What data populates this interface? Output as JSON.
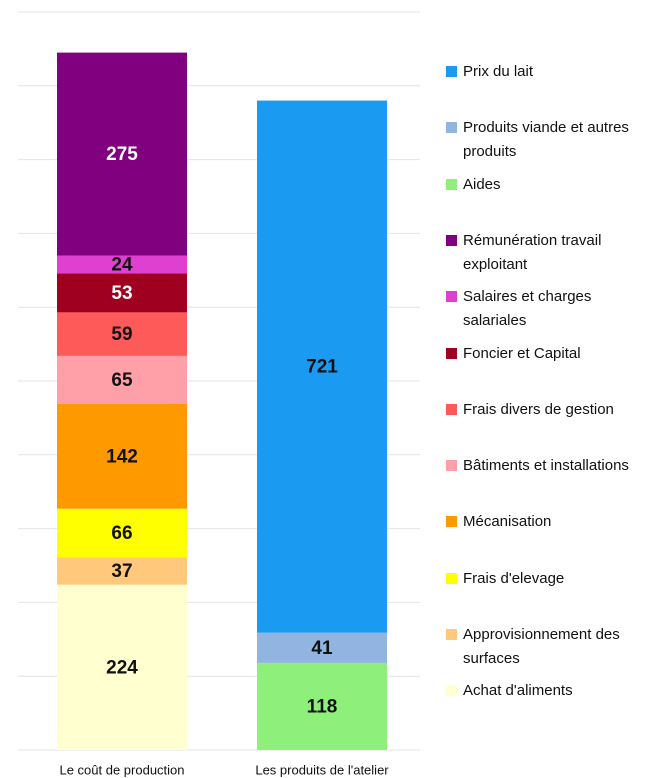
{
  "chart_data": {
    "type": "stacked_bar",
    "categories": [
      "Le coût de production",
      "Les produits de l'atelier"
    ],
    "ylim": [
      0,
      1000
    ],
    "yticks": [
      0,
      100,
      200,
      300,
      400,
      500,
      600,
      700,
      800,
      900,
      1000
    ],
    "grid": true,
    "legend": "right",
    "series": [
      {
        "name": "Prix du lait",
        "color": "#1a9af0",
        "values": [
          null,
          721
        ]
      },
      {
        "name": "Produits viande et autres produits",
        "color": "#92b4e0",
        "values": [
          null,
          41
        ]
      },
      {
        "name": "Aides",
        "color": "#8ef07a",
        "values": [
          null,
          118
        ]
      },
      {
        "name": "Rémunération travail exploitant",
        "color": "#800080",
        "values": [
          275,
          null
        ]
      },
      {
        "name": "Salaires et charges salariales",
        "color": "#e040d0",
        "values": [
          24,
          null
        ]
      },
      {
        "name": "Foncier et Capital",
        "color": "#a00020",
        "values": [
          53,
          null
        ]
      },
      {
        "name": "Frais divers de gestion",
        "color": "#ff5a5a",
        "values": [
          59,
          null
        ]
      },
      {
        "name": "Bâtiments et installations",
        "color": "#ffa0a8",
        "values": [
          65,
          null
        ]
      },
      {
        "name": "Mécanisation",
        "color": "#ff9900",
        "values": [
          142,
          null
        ]
      },
      {
        "name": "Frais d'elevage",
        "color": "#ffff00",
        "values": [
          66,
          null
        ]
      },
      {
        "name": "Approvisionnement des surfaces",
        "color": "#ffc87a",
        "values": [
          37,
          null
        ]
      },
      {
        "name": "Achat d'aliments",
        "color": "#ffffd0",
        "values": [
          224,
          null
        ]
      }
    ]
  }
}
